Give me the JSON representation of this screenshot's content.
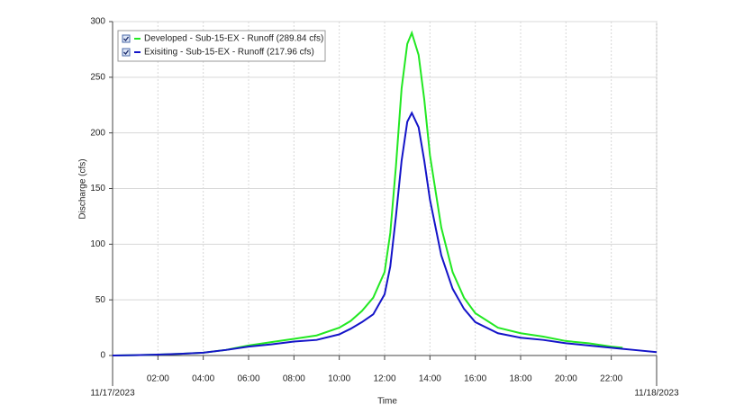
{
  "chart_data": {
    "type": "line",
    "x_label": "Time",
    "y_label": "Discharge (cfs)",
    "xlim": [
      0,
      24
    ],
    "xticks": [
      {
        "value": 0,
        "label": "11/17/2023"
      },
      {
        "value": 2,
        "label": "02:00"
      },
      {
        "value": 4,
        "label": "04:00"
      },
      {
        "value": 6,
        "label": "06:00"
      },
      {
        "value": 8,
        "label": "08:00"
      },
      {
        "value": 10,
        "label": "10:00"
      },
      {
        "value": 12,
        "label": "12:00"
      },
      {
        "value": 14,
        "label": "14:00"
      },
      {
        "value": 16,
        "label": "16:00"
      },
      {
        "value": 18,
        "label": "18:00"
      },
      {
        "value": 20,
        "label": "20:00"
      },
      {
        "value": 22,
        "label": "22:00"
      },
      {
        "value": 24,
        "label": "11/18/2023"
      }
    ],
    "ylim": [
      0,
      300
    ],
    "yticks": [
      0,
      50,
      100,
      150,
      200,
      250,
      300
    ],
    "grid": true,
    "legend": "upper left",
    "x": [
      0,
      1,
      2,
      3,
      4,
      5,
      6,
      7,
      8,
      9,
      10,
      10.5,
      11,
      11.5,
      12,
      12.25,
      12.5,
      12.75,
      13,
      13.2,
      13.5,
      13.75,
      14,
      14.5,
      15,
      15.5,
      16,
      17,
      18,
      19,
      20,
      21,
      22,
      22.5,
      23,
      24
    ],
    "series": [
      {
        "name": "Developed - Sub-15-EX - Runoff (289.84 cfs)",
        "color": "#22e822",
        "values": [
          0,
          0.3,
          0.8,
          1.5,
          2.5,
          5,
          9,
          12,
          15,
          18,
          25,
          31,
          40,
          52,
          75,
          110,
          170,
          240,
          280,
          289.84,
          270,
          230,
          180,
          115,
          75,
          52,
          38,
          25,
          20,
          17,
          13,
          11,
          8,
          7,
          null,
          null
        ]
      },
      {
        "name": "Exisiting - Sub-15-EX - Runoff (217.96 cfs)",
        "color": "#1414c8",
        "values": [
          0,
          0.3,
          0.8,
          1.5,
          2.5,
          5,
          8,
          10,
          12.5,
          14,
          19,
          24,
          30,
          37,
          55,
          80,
          125,
          175,
          210,
          217.96,
          205,
          175,
          140,
          90,
          60,
          42,
          30,
          20,
          16,
          14,
          11,
          9,
          7,
          6,
          5,
          3
        ]
      }
    ]
  }
}
